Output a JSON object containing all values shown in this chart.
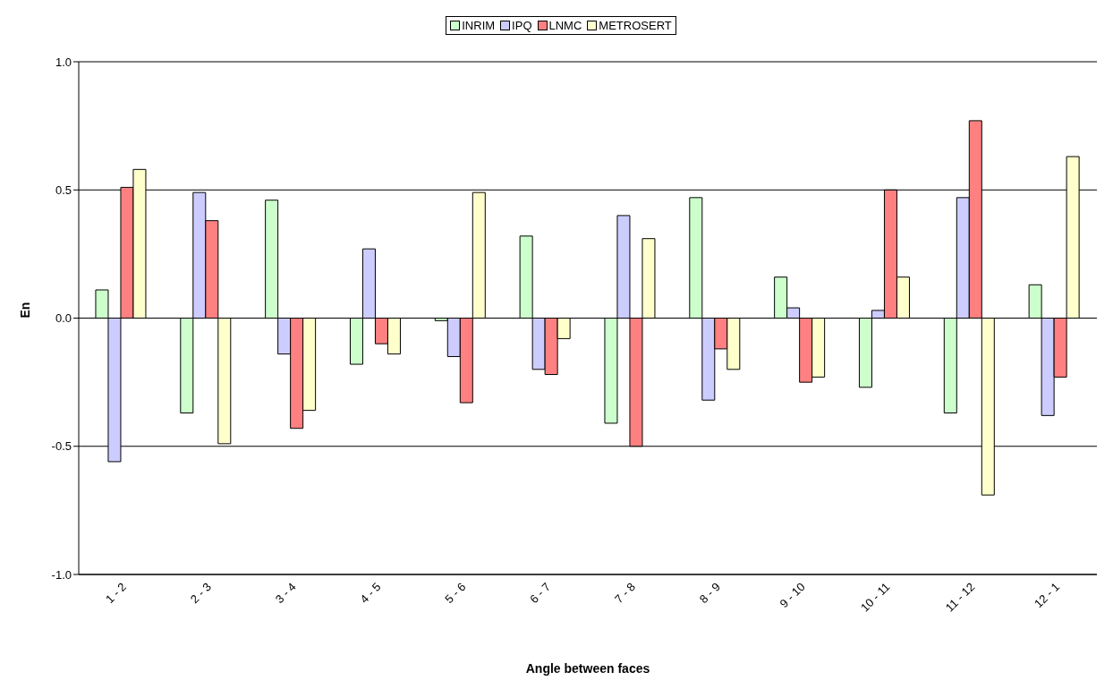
{
  "chart_data": {
    "type": "bar",
    "xlabel": "Angle between faces",
    "ylabel": "En",
    "categories": [
      "1 - 2",
      "2 - 3",
      "3 - 4",
      "4 - 5",
      "5 - 6",
      "6 - 7",
      "7 - 8",
      "8 - 9",
      "9 - 10",
      "10 - 11",
      "11 - 12",
      "12 - 1"
    ],
    "series": [
      {
        "name": "INRIM",
        "color": "#ccffcc",
        "values": [
          0.11,
          -0.37,
          0.46,
          -0.18,
          -0.01,
          0.32,
          -0.41,
          0.47,
          0.16,
          -0.27,
          -0.37,
          0.13
        ]
      },
      {
        "name": "IPQ",
        "color": "#ccccff",
        "values": [
          -0.56,
          0.49,
          -0.14,
          0.27,
          -0.15,
          -0.2,
          0.4,
          -0.32,
          0.04,
          0.03,
          0.47,
          -0.38
        ]
      },
      {
        "name": "LNMC",
        "color": "#ff8080",
        "values": [
          0.51,
          0.38,
          -0.43,
          -0.1,
          -0.33,
          -0.22,
          -0.5,
          -0.12,
          -0.25,
          0.5,
          0.77,
          -0.23
        ]
      },
      {
        "name": "METROSERT",
        "color": "#ffffcc",
        "values": [
          0.58,
          -0.49,
          -0.36,
          -0.14,
          0.49,
          -0.08,
          0.31,
          -0.2,
          -0.23,
          0.16,
          -0.69,
          0.63
        ]
      }
    ],
    "ylim": [
      -1,
      1
    ],
    "yticks": [
      {
        "value": -1,
        "label": "-1.0"
      },
      {
        "value": -0.5,
        "label": "-0.5"
      },
      {
        "value": 0,
        "label": "0.0"
      },
      {
        "value": 0.5,
        "label": "0.5"
      },
      {
        "value": 1,
        "label": "1.0"
      }
    ],
    "grid": "y",
    "legend": "top"
  }
}
